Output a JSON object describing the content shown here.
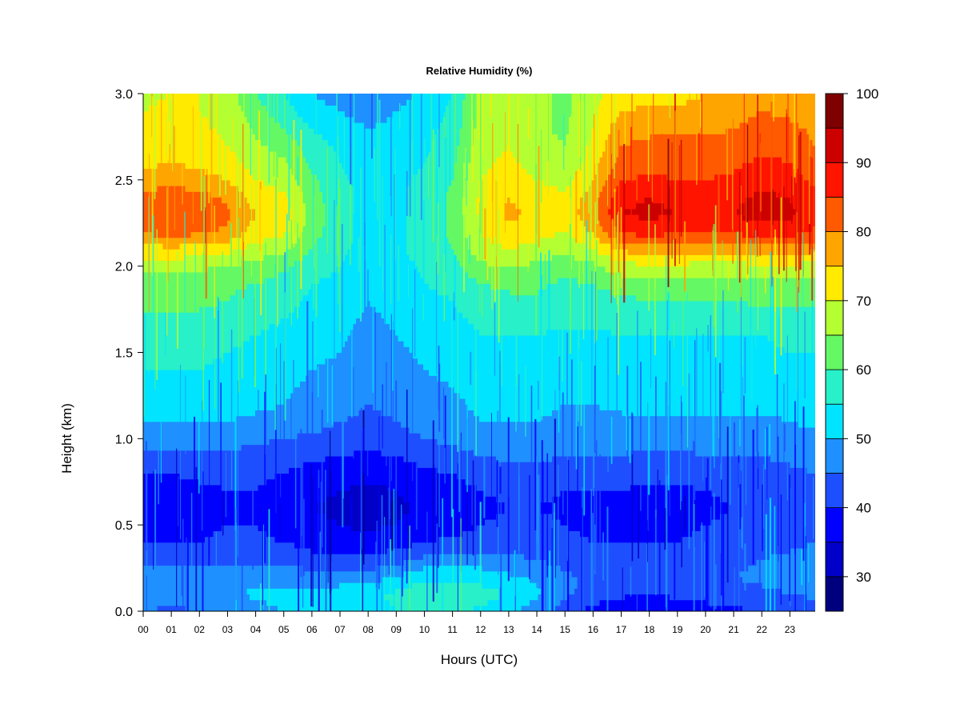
{
  "chart_data": {
    "type": "heatmap",
    "title": "Relative Humidity (%)",
    "xlabel": "Hours (UTC)",
    "ylabel": "Height (km)",
    "xlim": [
      0,
      23.9
    ],
    "ylim": [
      0.0,
      3.0
    ],
    "x_ticks": [
      0,
      1,
      2,
      3,
      4,
      5,
      6,
      7,
      8,
      9,
      10,
      11,
      12,
      13,
      14,
      15,
      16,
      17,
      18,
      19,
      20,
      21,
      22,
      23
    ],
    "x_tick_labels": [
      "00",
      "01",
      "02",
      "03",
      "04",
      "05",
      "06",
      "07",
      "08",
      "09",
      "10",
      "11",
      "12",
      "13",
      "14",
      "15",
      "16",
      "17",
      "18",
      "19",
      "20",
      "21",
      "22",
      "23"
    ],
    "y_ticks": [
      0.0,
      0.5,
      1.0,
      1.5,
      2.0,
      2.5,
      3.0
    ],
    "y_tick_labels": [
      "0.0",
      "0.5",
      "1.0",
      "1.5",
      "2.0",
      "2.5",
      "3.0"
    ],
    "grid": false,
    "colorbar": {
      "range": [
        25,
        100
      ],
      "levels": [
        25,
        30,
        35,
        40,
        45,
        50,
        55,
        60,
        65,
        70,
        75,
        80,
        85,
        90,
        95,
        100
      ],
      "colors": [
        "#00007f",
        "#0000c8",
        "#0000ff",
        "#1e4fff",
        "#1e90ff",
        "#00e4ff",
        "#28f0c8",
        "#64f864",
        "#b4ff32",
        "#ffea00",
        "#ffa500",
        "#ff5a00",
        "#ff1400",
        "#cd0000",
        "#7f0000"
      ],
      "tick_values": [
        30,
        40,
        50,
        60,
        70,
        80,
        90,
        100
      ],
      "tick_labels": [
        "30",
        "40",
        "50",
        "60",
        "70",
        "80",
        "90",
        "100"
      ],
      "placement": "right"
    },
    "heights": [
      0.0,
      0.1,
      0.2,
      0.3,
      0.4,
      0.5,
      0.6,
      0.7,
      0.8,
      0.9,
      1.0,
      1.1,
      1.2,
      1.3,
      1.4,
      1.5,
      1.6,
      1.7,
      1.8,
      1.9,
      2.0,
      2.1,
      2.2,
      2.3,
      2.4,
      2.5,
      2.6,
      2.7,
      2.8,
      2.9,
      3.0
    ],
    "hours": [
      0,
      1,
      2,
      3,
      4,
      5,
      6,
      7,
      8,
      9,
      10,
      11,
      12,
      13,
      14,
      15,
      16,
      17,
      18,
      19,
      20,
      21,
      22,
      23,
      23.9
    ],
    "values_by_hour": [
      [
        45,
        48,
        48,
        43,
        40,
        38,
        37,
        38,
        40,
        43,
        47,
        50,
        52,
        54,
        55,
        56,
        57,
        59,
        61,
        62,
        67,
        73,
        81,
        84,
        82,
        77,
        74,
        72,
        71,
        70,
        69
      ],
      [
        44,
        47,
        47,
        43,
        40,
        38,
        37,
        38,
        40,
        43,
        47,
        50,
        52,
        54,
        55,
        56,
        57,
        59,
        61,
        62,
        67,
        74,
        82,
        85,
        83,
        78,
        75,
        73,
        72,
        71,
        70
      ],
      [
        45,
        48,
        47,
        43,
        40,
        39,
        38,
        39,
        41,
        44,
        47,
        50,
        52,
        54,
        55,
        56,
        57,
        59,
        61,
        62,
        66,
        73,
        81,
        84,
        82,
        77,
        74,
        72,
        71,
        70,
        70
      ],
      [
        46,
        49,
        47,
        43,
        41,
        40,
        39,
        40,
        41,
        44,
        47,
        50,
        52,
        53,
        54,
        55,
        56,
        58,
        60,
        61,
        65,
        72,
        79,
        81,
        79,
        75,
        72,
        70,
        69,
        68,
        68
      ],
      [
        48,
        51,
        48,
        44,
        41,
        40,
        39,
        40,
        41,
        43,
        46,
        49,
        51,
        52,
        53,
        54,
        55,
        56,
        58,
        60,
        63,
        68,
        73,
        75,
        73,
        70,
        68,
        66,
        64,
        62,
        60
      ],
      [
        50,
        52,
        48,
        44,
        40,
        38,
        37,
        38,
        40,
        42,
        45,
        48,
        50,
        51,
        52,
        53,
        54,
        55,
        57,
        58,
        61,
        66,
        71,
        73,
        71,
        68,
        66,
        63,
        60,
        57,
        55
      ],
      [
        51,
        52,
        47,
        42,
        38,
        36,
        35,
        36,
        38,
        41,
        44,
        47,
        48,
        49,
        50,
        51,
        52,
        53,
        54,
        55,
        57,
        60,
        62,
        63,
        62,
        61,
        59,
        57,
        55,
        52,
        50
      ],
      [
        52,
        53,
        47,
        41,
        37,
        35,
        34,
        35,
        37,
        40,
        43,
        45,
        47,
        48,
        49,
        50,
        51,
        52,
        53,
        54,
        55,
        56,
        57,
        57,
        57,
        56,
        55,
        54,
        52,
        50,
        48
      ],
      [
        53,
        54,
        48,
        41,
        37,
        34,
        33,
        34,
        36,
        39,
        42,
        44,
        45,
        46,
        47,
        48,
        48,
        49,
        50,
        51,
        52,
        53,
        53,
        53,
        53,
        53,
        52,
        51,
        50,
        48,
        46
      ],
      [
        55,
        56,
        50,
        43,
        38,
        35,
        34,
        35,
        37,
        40,
        43,
        45,
        46,
        47,
        48,
        49,
        50,
        51,
        52,
        52,
        53,
        54,
        54,
        54,
        54,
        54,
        53,
        52,
        51,
        50,
        48
      ],
      [
        57,
        59,
        54,
        46,
        40,
        37,
        36,
        37,
        39,
        42,
        45,
        47,
        48,
        49,
        50,
        51,
        52,
        53,
        54,
        55,
        56,
        57,
        57,
        57,
        57,
        56,
        55,
        54,
        53,
        52,
        51
      ],
      [
        56,
        58,
        54,
        47,
        41,
        38,
        37,
        38,
        40,
        43,
        46,
        48,
        49,
        50,
        51,
        52,
        53,
        54,
        55,
        56,
        58,
        60,
        61,
        61,
        61,
        60,
        59,
        58,
        57,
        56,
        55
      ],
      [
        54,
        57,
        53,
        47,
        42,
        40,
        39,
        40,
        42,
        45,
        48,
        50,
        51,
        52,
        53,
        54,
        55,
        56,
        58,
        60,
        64,
        68,
        70,
        71,
        71,
        70,
        69,
        68,
        67,
        67,
        67
      ],
      [
        51,
        55,
        51,
        46,
        43,
        41,
        40,
        41,
        43,
        46,
        48,
        50,
        51,
        52,
        53,
        54,
        55,
        57,
        59,
        61,
        65,
        70,
        74,
        76,
        75,
        72,
        71,
        70,
        69,
        68,
        68
      ],
      [
        47,
        51,
        49,
        45,
        42,
        41,
        40,
        41,
        43,
        46,
        48,
        50,
        51,
        52,
        53,
        54,
        55,
        57,
        59,
        61,
        64,
        68,
        72,
        74,
        73,
        70,
        68,
        67,
        66,
        66,
        66
      ],
      [
        42,
        46,
        46,
        43,
        41,
        40,
        39,
        40,
        42,
        45,
        47,
        49,
        50,
        51,
        52,
        53,
        54,
        56,
        57,
        59,
        62,
        66,
        70,
        72,
        71,
        68,
        66,
        65,
        64,
        64,
        64
      ],
      [
        38,
        43,
        44,
        42,
        40,
        39,
        39,
        40,
        42,
        45,
        47,
        49,
        50,
        51,
        52,
        53,
        54,
        56,
        58,
        60,
        64,
        70,
        76,
        79,
        78,
        75,
        73,
        71,
        70,
        69,
        69
      ],
      [
        36,
        41,
        43,
        42,
        40,
        39,
        38,
        40,
        42,
        45,
        47,
        49,
        51,
        52,
        53,
        54,
        55,
        57,
        59,
        62,
        68,
        76,
        86,
        90,
        89,
        85,
        82,
        80,
        78,
        75,
        72
      ],
      [
        35,
        40,
        42,
        41,
        40,
        39,
        38,
        39,
        41,
        44,
        46,
        49,
        51,
        52,
        53,
        54,
        55,
        57,
        60,
        63,
        69,
        78,
        87,
        91,
        90,
        86,
        83,
        81,
        79,
        76,
        73
      ],
      [
        37,
        41,
        43,
        42,
        40,
        39,
        38,
        39,
        41,
        44,
        46,
        49,
        51,
        52,
        53,
        54,
        55,
        57,
        60,
        63,
        69,
        77,
        86,
        90,
        89,
        85,
        83,
        81,
        79,
        76,
        73
      ],
      [
        38,
        42,
        44,
        43,
        41,
        40,
        39,
        40,
        42,
        45,
        47,
        49,
        51,
        52,
        53,
        54,
        55,
        57,
        60,
        63,
        68,
        77,
        85,
        89,
        88,
        85,
        83,
        81,
        79,
        77,
        75
      ],
      [
        39,
        43,
        45,
        44,
        42,
        41,
        40,
        41,
        43,
        45,
        47,
        49,
        51,
        52,
        53,
        54,
        55,
        57,
        60,
        63,
        68,
        77,
        86,
        90,
        89,
        86,
        84,
        82,
        80,
        78,
        76
      ],
      [
        40,
        44,
        46,
        45,
        43,
        42,
        41,
        42,
        43,
        45,
        47,
        49,
        51,
        52,
        53,
        54,
        55,
        58,
        61,
        64,
        69,
        78,
        88,
        92,
        91,
        88,
        86,
        84,
        82,
        80,
        78
      ],
      [
        41,
        45,
        47,
        46,
        44,
        43,
        42,
        43,
        44,
        46,
        48,
        50,
        52,
        53,
        54,
        55,
        56,
        58,
        61,
        64,
        69,
        78,
        87,
        91,
        90,
        87,
        85,
        83,
        81,
        79,
        77
      ],
      [
        42,
        46,
        48,
        47,
        45,
        44,
        43,
        44,
        45,
        47,
        49,
        51,
        52,
        53,
        54,
        55,
        56,
        58,
        61,
        64,
        68,
        76,
        84,
        87,
        86,
        84,
        82,
        80,
        79,
        77,
        76
      ]
    ]
  }
}
